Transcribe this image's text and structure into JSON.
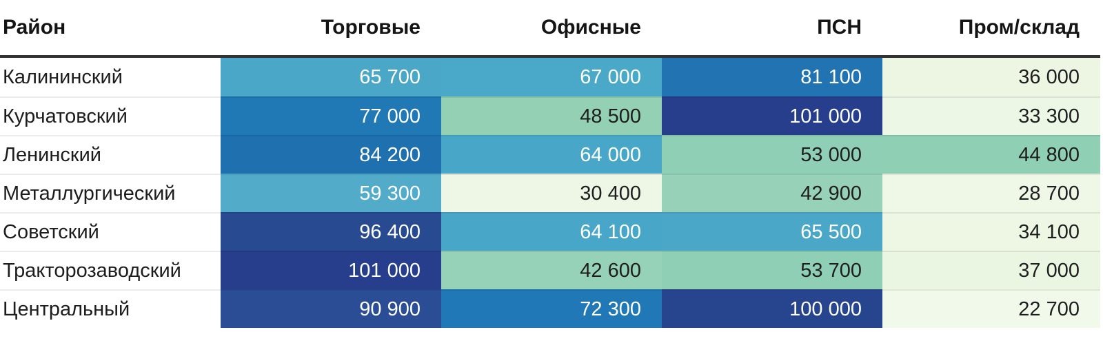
{
  "table": {
    "columns": [
      "Район",
      "Торговые",
      "Офисные",
      "ПСН",
      "Пром/склад"
    ],
    "rows": [
      {
        "district": "Калининский",
        "cells": [
          {
            "text": "65 700",
            "value": 65700,
            "bg": "#4BA7C8",
            "fg": "#FFFFFF"
          },
          {
            "text": "67 000",
            "value": 67000,
            "bg": "#4AA8C9",
            "fg": "#FFFFFF"
          },
          {
            "text": "81 100",
            "value": 81100,
            "bg": "#2173B1",
            "fg": "#FFFFFF"
          },
          {
            "text": "36 000",
            "value": 36000,
            "bg": "#ECF6E3",
            "fg": "#1E1E1E"
          }
        ]
      },
      {
        "district": "Курчатовский",
        "cells": [
          {
            "text": "77 000",
            "value": 77000,
            "bg": "#2078B4",
            "fg": "#FFFFFF"
          },
          {
            "text": "48 500",
            "value": 48500,
            "bg": "#93D0B4",
            "fg": "#1E1E1E"
          },
          {
            "text": "101 000",
            "value": 101000,
            "bg": "#263E8C",
            "fg": "#FFFFFF"
          },
          {
            "text": "33 300",
            "value": 33300,
            "bg": "#EDF7E5",
            "fg": "#1E1E1E"
          }
        ]
      },
      {
        "district": "Ленинский",
        "cells": [
          {
            "text": "84 200",
            "value": 84200,
            "bg": "#1F70AF",
            "fg": "#FFFFFF"
          },
          {
            "text": "64 000",
            "value": 64000,
            "bg": "#48A7C8",
            "fg": "#FFFFFF"
          },
          {
            "text": "53 000",
            "value": 53000,
            "bg": "#8FCFB6",
            "fg": "#1E1E1E"
          },
          {
            "text": "44 800",
            "value": 44800,
            "bg": "#8FCFB4",
            "fg": "#1E1E1E"
          }
        ]
      },
      {
        "district": "Металлургический",
        "cells": [
          {
            "text": "59 300",
            "value": 59300,
            "bg": "#52ABC9",
            "fg": "#FFFFFF"
          },
          {
            "text": "30 400",
            "value": 30400,
            "bg": "#EEF7E6",
            "fg": "#1E1E1E"
          },
          {
            "text": "42 900",
            "value": 42900,
            "bg": "#97D2B8",
            "fg": "#1E1E1E"
          },
          {
            "text": "28 700",
            "value": 28700,
            "bg": "#EFF8E7",
            "fg": "#1E1E1E"
          }
        ]
      },
      {
        "district": "Советский",
        "cells": [
          {
            "text": "96 400",
            "value": 96400,
            "bg": "#284A91",
            "fg": "#FFFFFF"
          },
          {
            "text": "64 100",
            "value": 64100,
            "bg": "#48A6C8",
            "fg": "#FFFFFF"
          },
          {
            "text": "65 500",
            "value": 65500,
            "bg": "#4AA7C8",
            "fg": "#FFFFFF"
          },
          {
            "text": "34 100",
            "value": 34100,
            "bg": "#EDF7E4",
            "fg": "#1E1E1E"
          }
        ]
      },
      {
        "district": "Тракторозаводский",
        "cells": [
          {
            "text": "101 000",
            "value": 101000,
            "bg": "#263E8C",
            "fg": "#FFFFFF"
          },
          {
            "text": "42 600",
            "value": 42600,
            "bg": "#96D2B7",
            "fg": "#1E1E1E"
          },
          {
            "text": "53 700",
            "value": 53700,
            "bg": "#8ECFB5",
            "fg": "#1E1E1E"
          },
          {
            "text": "37 000",
            "value": 37000,
            "bg": "#EBF6E2",
            "fg": "#1E1E1E"
          }
        ]
      },
      {
        "district": "Центральный",
        "cells": [
          {
            "text": "90 900",
            "value": 90900,
            "bg": "#2A4D96",
            "fg": "#FFFFFF"
          },
          {
            "text": "72 300",
            "value": 72300,
            "bg": "#2079B6",
            "fg": "#FFFFFF"
          },
          {
            "text": "100 000",
            "value": 100000,
            "bg": "#27458E",
            "fg": "#FFFFFF"
          },
          {
            "text": "22 700",
            "value": 22700,
            "bg": "#F0F9EA",
            "fg": "#1E1E1E"
          }
        ]
      }
    ]
  },
  "chart_data": {
    "type": "heatmap",
    "title": "",
    "rows": [
      "Калининский",
      "Курчатовский",
      "Ленинский",
      "Металлургический",
      "Советский",
      "Тракторозаводский",
      "Центральный"
    ],
    "columns": [
      "Торговые",
      "Офисные",
      "ПСН",
      "Пром/склад"
    ],
    "values": [
      [
        65700,
        67000,
        81100,
        36000
      ],
      [
        77000,
        48500,
        101000,
        33300
      ],
      [
        84200,
        64000,
        53000,
        44800
      ],
      [
        59300,
        30400,
        42900,
        28700
      ],
      [
        96400,
        64100,
        65500,
        34100
      ],
      [
        101000,
        42600,
        53700,
        37000
      ],
      [
        90900,
        72300,
        100000,
        22700
      ]
    ],
    "value_range": [
      22700,
      101000
    ],
    "color_scale": {
      "type": "stepped-green-blue",
      "stops": [
        "#F0F9EA",
        "#93D0B5",
        "#4AA7C8",
        "#2078B4",
        "#27458E"
      ]
    },
    "legend": "none",
    "grid": "row-separators"
  }
}
